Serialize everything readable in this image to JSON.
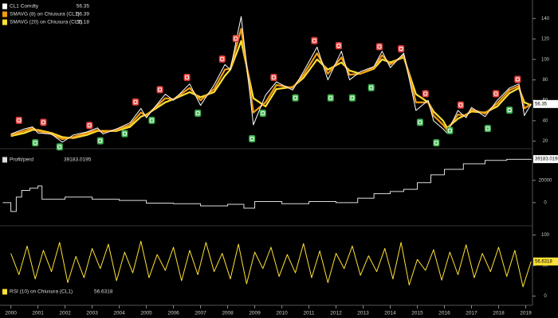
{
  "chart_data": [
    {
      "type": "line",
      "xlim": [
        1999.6,
        2019.25
      ],
      "ylim": [
        15,
        155
      ],
      "yticks": [
        20,
        40,
        60,
        80,
        100,
        120,
        140
      ],
      "x": [
        2000.0,
        2000.5,
        2000.8,
        2001.0,
        2001.5,
        2001.9,
        2002.3,
        2002.8,
        2003.2,
        2003.4,
        2003.9,
        2004.4,
        2004.8,
        2005.0,
        2005.7,
        2006.0,
        2006.6,
        2007.0,
        2007.5,
        2007.9,
        2008.1,
        2008.5,
        2008.95,
        2009.4,
        2009.8,
        2010.4,
        2010.8,
        2011.3,
        2011.7,
        2012.2,
        2012.5,
        2012.9,
        2013.4,
        2013.7,
        2014.0,
        2014.5,
        2014.95,
        2015.4,
        2015.6,
        2015.95,
        2016.1,
        2016.5,
        2016.8,
        2017.0,
        2017.5,
        2017.95,
        2018.4,
        2018.75,
        2018.95,
        2019.2
      ],
      "series": [
        {
          "name": "CL1 Comdty",
          "color": "#ffffff",
          "last_value": 56.35,
          "values": [
            27,
            32,
            34,
            28,
            27,
            19,
            26,
            29,
            33,
            27,
            32,
            38,
            52,
            43,
            66,
            60,
            76,
            55,
            75,
            95,
            90,
            142,
            36,
            65,
            78,
            70,
            88,
            112,
            80,
            108,
            80,
            88,
            93,
            108,
            92,
            106,
            50,
            60,
            40,
            32,
            28,
            50,
            43,
            53,
            44,
            60,
            72,
            76,
            45,
            56.35
          ]
        },
        {
          "name": "SMAVG (8) on Chiusura (CL1)",
          "color": "#f39c12",
          "last_value": 56.39,
          "values": [
            26,
            30,
            33,
            30,
            27,
            22,
            24,
            28,
            31,
            29,
            31,
            36,
            48,
            45,
            62,
            61,
            72,
            60,
            71,
            90,
            91,
            130,
            48,
            58,
            75,
            72,
            85,
            106,
            86,
            102,
            85,
            86,
            92,
            104,
            95,
            104,
            58,
            58,
            45,
            36,
            31,
            46,
            45,
            51,
            47,
            57,
            70,
            74,
            52,
            56.39
          ]
        },
        {
          "name": "SMAVG (20) on Chiusura (CL1)",
          "color": "#ffe135",
          "last_value": 55.18,
          "values": [
            25,
            28,
            31,
            31,
            28,
            24,
            23,
            26,
            30,
            30,
            30,
            34,
            44,
            46,
            58,
            61,
            68,
            63,
            68,
            84,
            90,
            118,
            62,
            54,
            71,
            73,
            82,
            100,
            90,
            97,
            89,
            86,
            91,
            100,
            97,
            102,
            66,
            58,
            49,
            40,
            33,
            42,
            46,
            49,
            48,
            54,
            67,
            72,
            58,
            55.18
          ]
        }
      ],
      "signals": [
        {
          "color": "#e8433f",
          "x": [
            2000.3,
            2001.2,
            2002.9,
            2004.6,
            2005.5,
            2006.5,
            2007.8,
            2008.3,
            2009.7,
            2011.2,
            2012.1,
            2013.6,
            2014.4,
            2015.3,
            2016.6,
            2017.9,
            2018.7
          ],
          "values": [
            40,
            38,
            35,
            58,
            70,
            82,
            100,
            120,
            82,
            118,
            113,
            112,
            110,
            66,
            55,
            66,
            80
          ]
        },
        {
          "color": "#3fb34f",
          "x": [
            2000.9,
            2001.8,
            2003.3,
            2004.2,
            2005.2,
            2006.9,
            2008.9,
            2009.3,
            2010.5,
            2011.8,
            2012.6,
            2013.3,
            2015.1,
            2015.7,
            2016.2,
            2017.6,
            2018.4
          ],
          "values": [
            18,
            14,
            20,
            27,
            40,
            47,
            22,
            47,
            62,
            62,
            62,
            72,
            38,
            18,
            30,
            32,
            50
          ]
        }
      ]
    },
    {
      "type": "line",
      "step": true,
      "xlim": [
        1999.6,
        2019.25
      ],
      "ylim": [
        -18000,
        45000
      ],
      "yticks": [
        0,
        20000
      ],
      "x": [
        1999.7,
        2000.0,
        2000.2,
        2000.4,
        2000.7,
        2001.0,
        2001.15,
        2002.0,
        2003.0,
        2004.0,
        2005.0,
        2006.0,
        2007.0,
        2008.0,
        2008.6,
        2009.0,
        2010.0,
        2011.0,
        2012.0,
        2012.8,
        2013.4,
        2014.0,
        2014.5,
        2015.0,
        2015.5,
        2016.0,
        2016.7,
        2017.5,
        2018.3,
        2019.2
      ],
      "series": [
        {
          "name": "Profit/perd",
          "color": "#dddddd",
          "last_value": 39183.0195,
          "values": [
            0,
            -8000,
            5000,
            11000,
            13000,
            15000,
            3000,
            5000,
            3000,
            2000,
            -500,
            -1000,
            -3000,
            -1500,
            -5000,
            1000,
            -1000,
            1000,
            0,
            4000,
            8000,
            10000,
            12000,
            18000,
            25000,
            30000,
            35000,
            38000,
            39000,
            39183.0195
          ]
        }
      ]
    },
    {
      "type": "line",
      "xlim": [
        1999.6,
        2019.25
      ],
      "ylim": [
        -10,
        110
      ],
      "yticks": [
        0,
        50,
        100
      ],
      "xticks": [
        2000,
        2001,
        2002,
        2003,
        2004,
        2005,
        2006,
        2007,
        2008,
        2009,
        2010,
        2011,
        2012,
        2013,
        2014,
        2015,
        2016,
        2017,
        2018,
        2019
      ],
      "x": [
        2000.0,
        2000.3,
        2000.6,
        2000.9,
        2001.2,
        2001.5,
        2001.8,
        2002.1,
        2002.4,
        2002.7,
        2003.0,
        2003.3,
        2003.6,
        2003.9,
        2004.2,
        2004.5,
        2004.8,
        2005.1,
        2005.4,
        2005.7,
        2006.0,
        2006.3,
        2006.6,
        2006.9,
        2007.2,
        2007.5,
        2007.8,
        2008.1,
        2008.4,
        2008.7,
        2009.0,
        2009.3,
        2009.6,
        2009.9,
        2010.2,
        2010.5,
        2010.8,
        2011.1,
        2011.4,
        2011.7,
        2012.0,
        2012.3,
        2012.6,
        2012.9,
        2013.2,
        2013.5,
        2013.8,
        2014.1,
        2014.4,
        2014.7,
        2015.0,
        2015.3,
        2015.6,
        2015.9,
        2016.2,
        2016.5,
        2016.8,
        2017.1,
        2017.4,
        2017.7,
        2018.0,
        2018.3,
        2018.6,
        2018.9,
        2019.2
      ],
      "series": [
        {
          "name": "RSI (10) on Chiusura (CL1)",
          "color": "#ffe135",
          "last_value": 56.6318,
          "values": [
            70,
            35,
            82,
            28,
            75,
            40,
            88,
            22,
            65,
            30,
            78,
            45,
            85,
            25,
            72,
            38,
            90,
            30,
            68,
            42,
            80,
            25,
            75,
            35,
            88,
            40,
            70,
            28,
            85,
            20,
            72,
            45,
            80,
            32,
            68,
            38,
            86,
            30,
            74,
            22,
            70,
            45,
            82,
            34,
            66,
            40,
            78,
            28,
            88,
            18,
            60,
            42,
            76,
            26,
            72,
            35,
            84,
            30,
            70,
            40,
            80,
            32,
            75,
            15,
            56.6318
          ]
        }
      ]
    }
  ]
}
